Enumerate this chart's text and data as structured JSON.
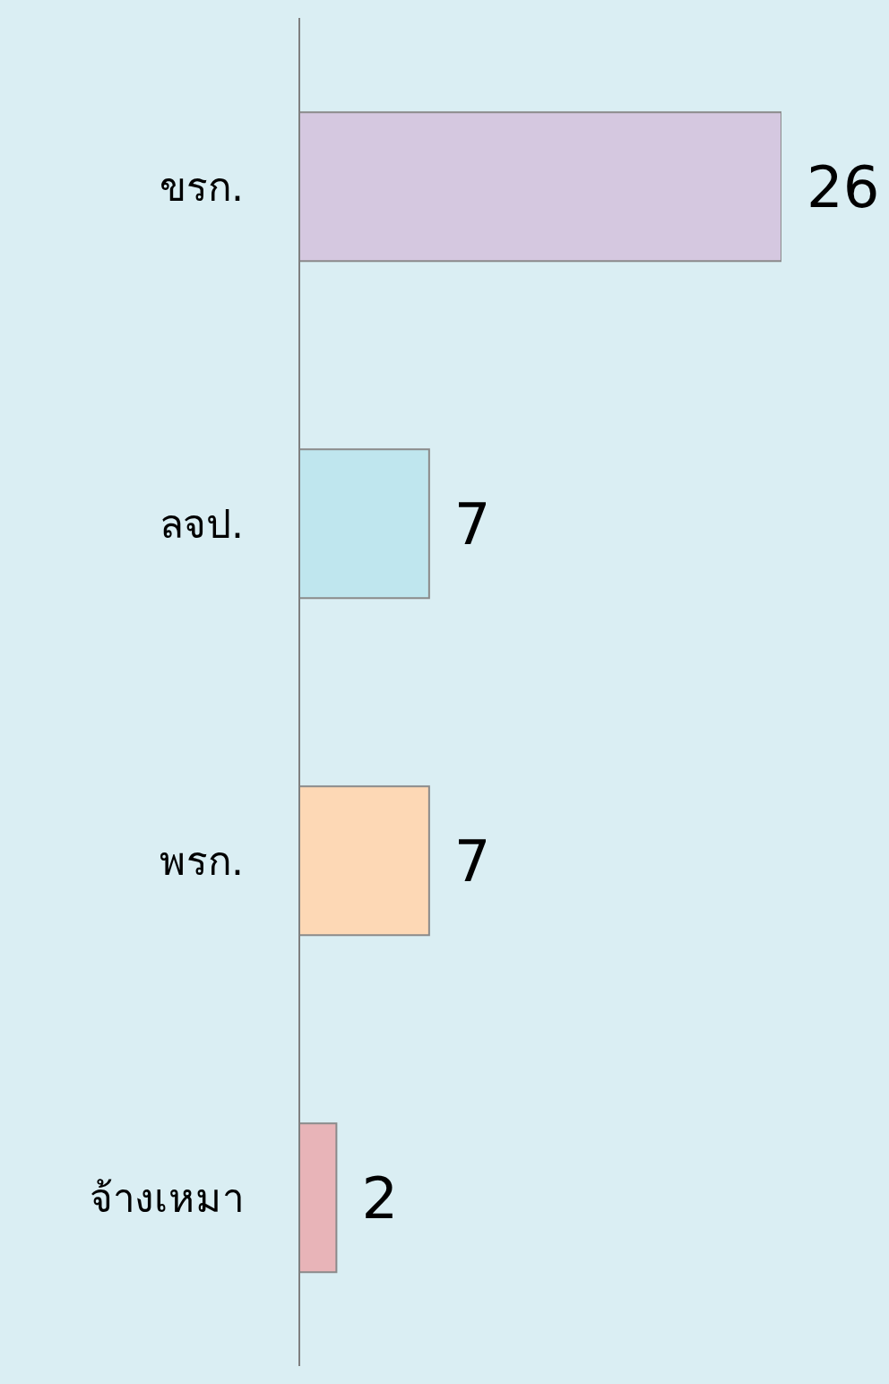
{
  "chart_data": {
    "type": "bar",
    "orientation": "horizontal",
    "categories": [
      "ขรก.",
      "ลจป.",
      "พรก.",
      "จ้างเหมา"
    ],
    "values": [
      26,
      7,
      7,
      2
    ],
    "colors": [
      "#d5c8e0",
      "#bfe6ee",
      "#fdd8b5",
      "#e8b4b8"
    ],
    "data_labels": true
  }
}
